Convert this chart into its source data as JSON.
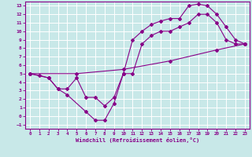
{
  "xlabel": "Windchill (Refroidissement éolien,°C)",
  "xlim": [
    -0.5,
    23.5
  ],
  "ylim": [
    -1.5,
    13.5
  ],
  "xticks": [
    0,
    1,
    2,
    3,
    4,
    5,
    6,
    7,
    8,
    9,
    10,
    11,
    12,
    13,
    14,
    15,
    16,
    17,
    18,
    19,
    20,
    21,
    22,
    23
  ],
  "yticks": [
    -1,
    0,
    1,
    2,
    3,
    4,
    5,
    6,
    7,
    8,
    9,
    10,
    11,
    12,
    13
  ],
  "line_color": "#880088",
  "bg_color": "#c8e8e8",
  "grid_color": "#ffffff",
  "line1_x": [
    0,
    2,
    3,
    4,
    6,
    7,
    8,
    9,
    10,
    11,
    12,
    13,
    14,
    15,
    16,
    17,
    18,
    19,
    20,
    21,
    22,
    23
  ],
  "line1_y": [
    5,
    4.5,
    3.2,
    2.5,
    0.5,
    -0.5,
    -0.5,
    1.5,
    5,
    9,
    10,
    10.8,
    11.2,
    11.5,
    11.5,
    13,
    13.2,
    13,
    12,
    10.5,
    9,
    8.5
  ],
  "line2_x": [
    0,
    1,
    2,
    3,
    4,
    5,
    6,
    7,
    8,
    9,
    10,
    11,
    12,
    13,
    14,
    15,
    16,
    17,
    18,
    19,
    20,
    21,
    22,
    23
  ],
  "line2_y": [
    5,
    4.8,
    4.5,
    3.2,
    3.2,
    4.5,
    2.2,
    2.2,
    1.2,
    2.2,
    5,
    5,
    8.5,
    9.5,
    10,
    10,
    10.5,
    11,
    12,
    12,
    11,
    9,
    8.5,
    8.5
  ],
  "line3_x": [
    0,
    5,
    10,
    15,
    20,
    23
  ],
  "line3_y": [
    5,
    5,
    5.5,
    6.5,
    7.8,
    8.5
  ]
}
